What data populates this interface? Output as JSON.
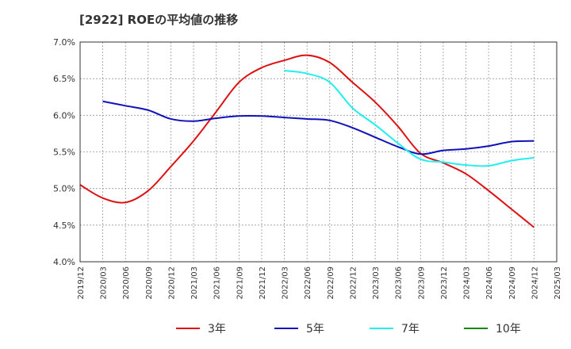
{
  "chart_data": {
    "type": "line",
    "title": "[2922]  ROEの平均値の推移",
    "xlabel": "",
    "ylabel": "",
    "ylim": [
      4.0,
      7.0
    ],
    "y_ticks": [
      "4.0%",
      "4.5%",
      "5.0%",
      "5.5%",
      "6.0%",
      "6.5%",
      "7.0%"
    ],
    "y_tick_values": [
      4.0,
      4.5,
      5.0,
      5.5,
      6.0,
      6.5,
      7.0
    ],
    "x_ticks": [
      "2019/12",
      "2020/03",
      "2020/06",
      "2020/09",
      "2020/12",
      "2021/03",
      "2021/06",
      "2021/09",
      "2021/12",
      "2022/03",
      "2022/06",
      "2022/09",
      "2022/12",
      "2023/03",
      "2023/06",
      "2023/09",
      "2023/12",
      "2024/03",
      "2024/06",
      "2024/09",
      "2024/12",
      "2025/03"
    ],
    "grid": true,
    "legend_position": "bottom",
    "series": [
      {
        "name": "3年",
        "color": "#dd1111",
        "x": [
          "2019/12",
          "2020/03",
          "2020/06",
          "2020/09",
          "2020/12",
          "2021/03",
          "2021/06",
          "2021/09",
          "2021/12",
          "2022/03",
          "2022/06",
          "2022/09",
          "2022/12",
          "2023/03",
          "2023/06",
          "2023/09",
          "2023/12",
          "2024/03",
          "2024/06",
          "2024/09",
          "2024/12"
        ],
        "values": [
          5.05,
          4.87,
          4.81,
          4.97,
          5.3,
          5.65,
          6.05,
          6.45,
          6.65,
          6.75,
          6.82,
          6.72,
          6.45,
          6.18,
          5.85,
          5.48,
          5.35,
          5.2,
          4.97,
          4.72,
          4.47
        ]
      },
      {
        "name": "5年",
        "color": "#1111bb",
        "x": [
          "2020/03",
          "2020/06",
          "2020/09",
          "2020/12",
          "2021/03",
          "2021/06",
          "2021/09",
          "2021/12",
          "2022/03",
          "2022/06",
          "2022/09",
          "2022/12",
          "2023/03",
          "2023/06",
          "2023/09",
          "2023/12",
          "2024/03",
          "2024/06",
          "2024/09",
          "2024/12"
        ],
        "values": [
          6.19,
          6.13,
          6.07,
          5.95,
          5.92,
          5.96,
          5.99,
          5.99,
          5.97,
          5.95,
          5.93,
          5.83,
          5.7,
          5.57,
          5.47,
          5.52,
          5.54,
          5.58,
          5.64,
          5.65
        ]
      },
      {
        "name": "7年",
        "color": "#22eeee",
        "x": [
          "2022/03",
          "2022/06",
          "2022/09",
          "2022/12",
          "2023/03",
          "2023/06",
          "2023/09",
          "2023/12",
          "2024/03",
          "2024/06",
          "2024/09",
          "2024/12"
        ],
        "values": [
          6.61,
          6.57,
          6.45,
          6.1,
          5.87,
          5.62,
          5.4,
          5.36,
          5.32,
          5.31,
          5.38,
          5.42
        ]
      },
      {
        "name": "10年",
        "color": "#118811",
        "x": [],
        "values": []
      }
    ]
  }
}
